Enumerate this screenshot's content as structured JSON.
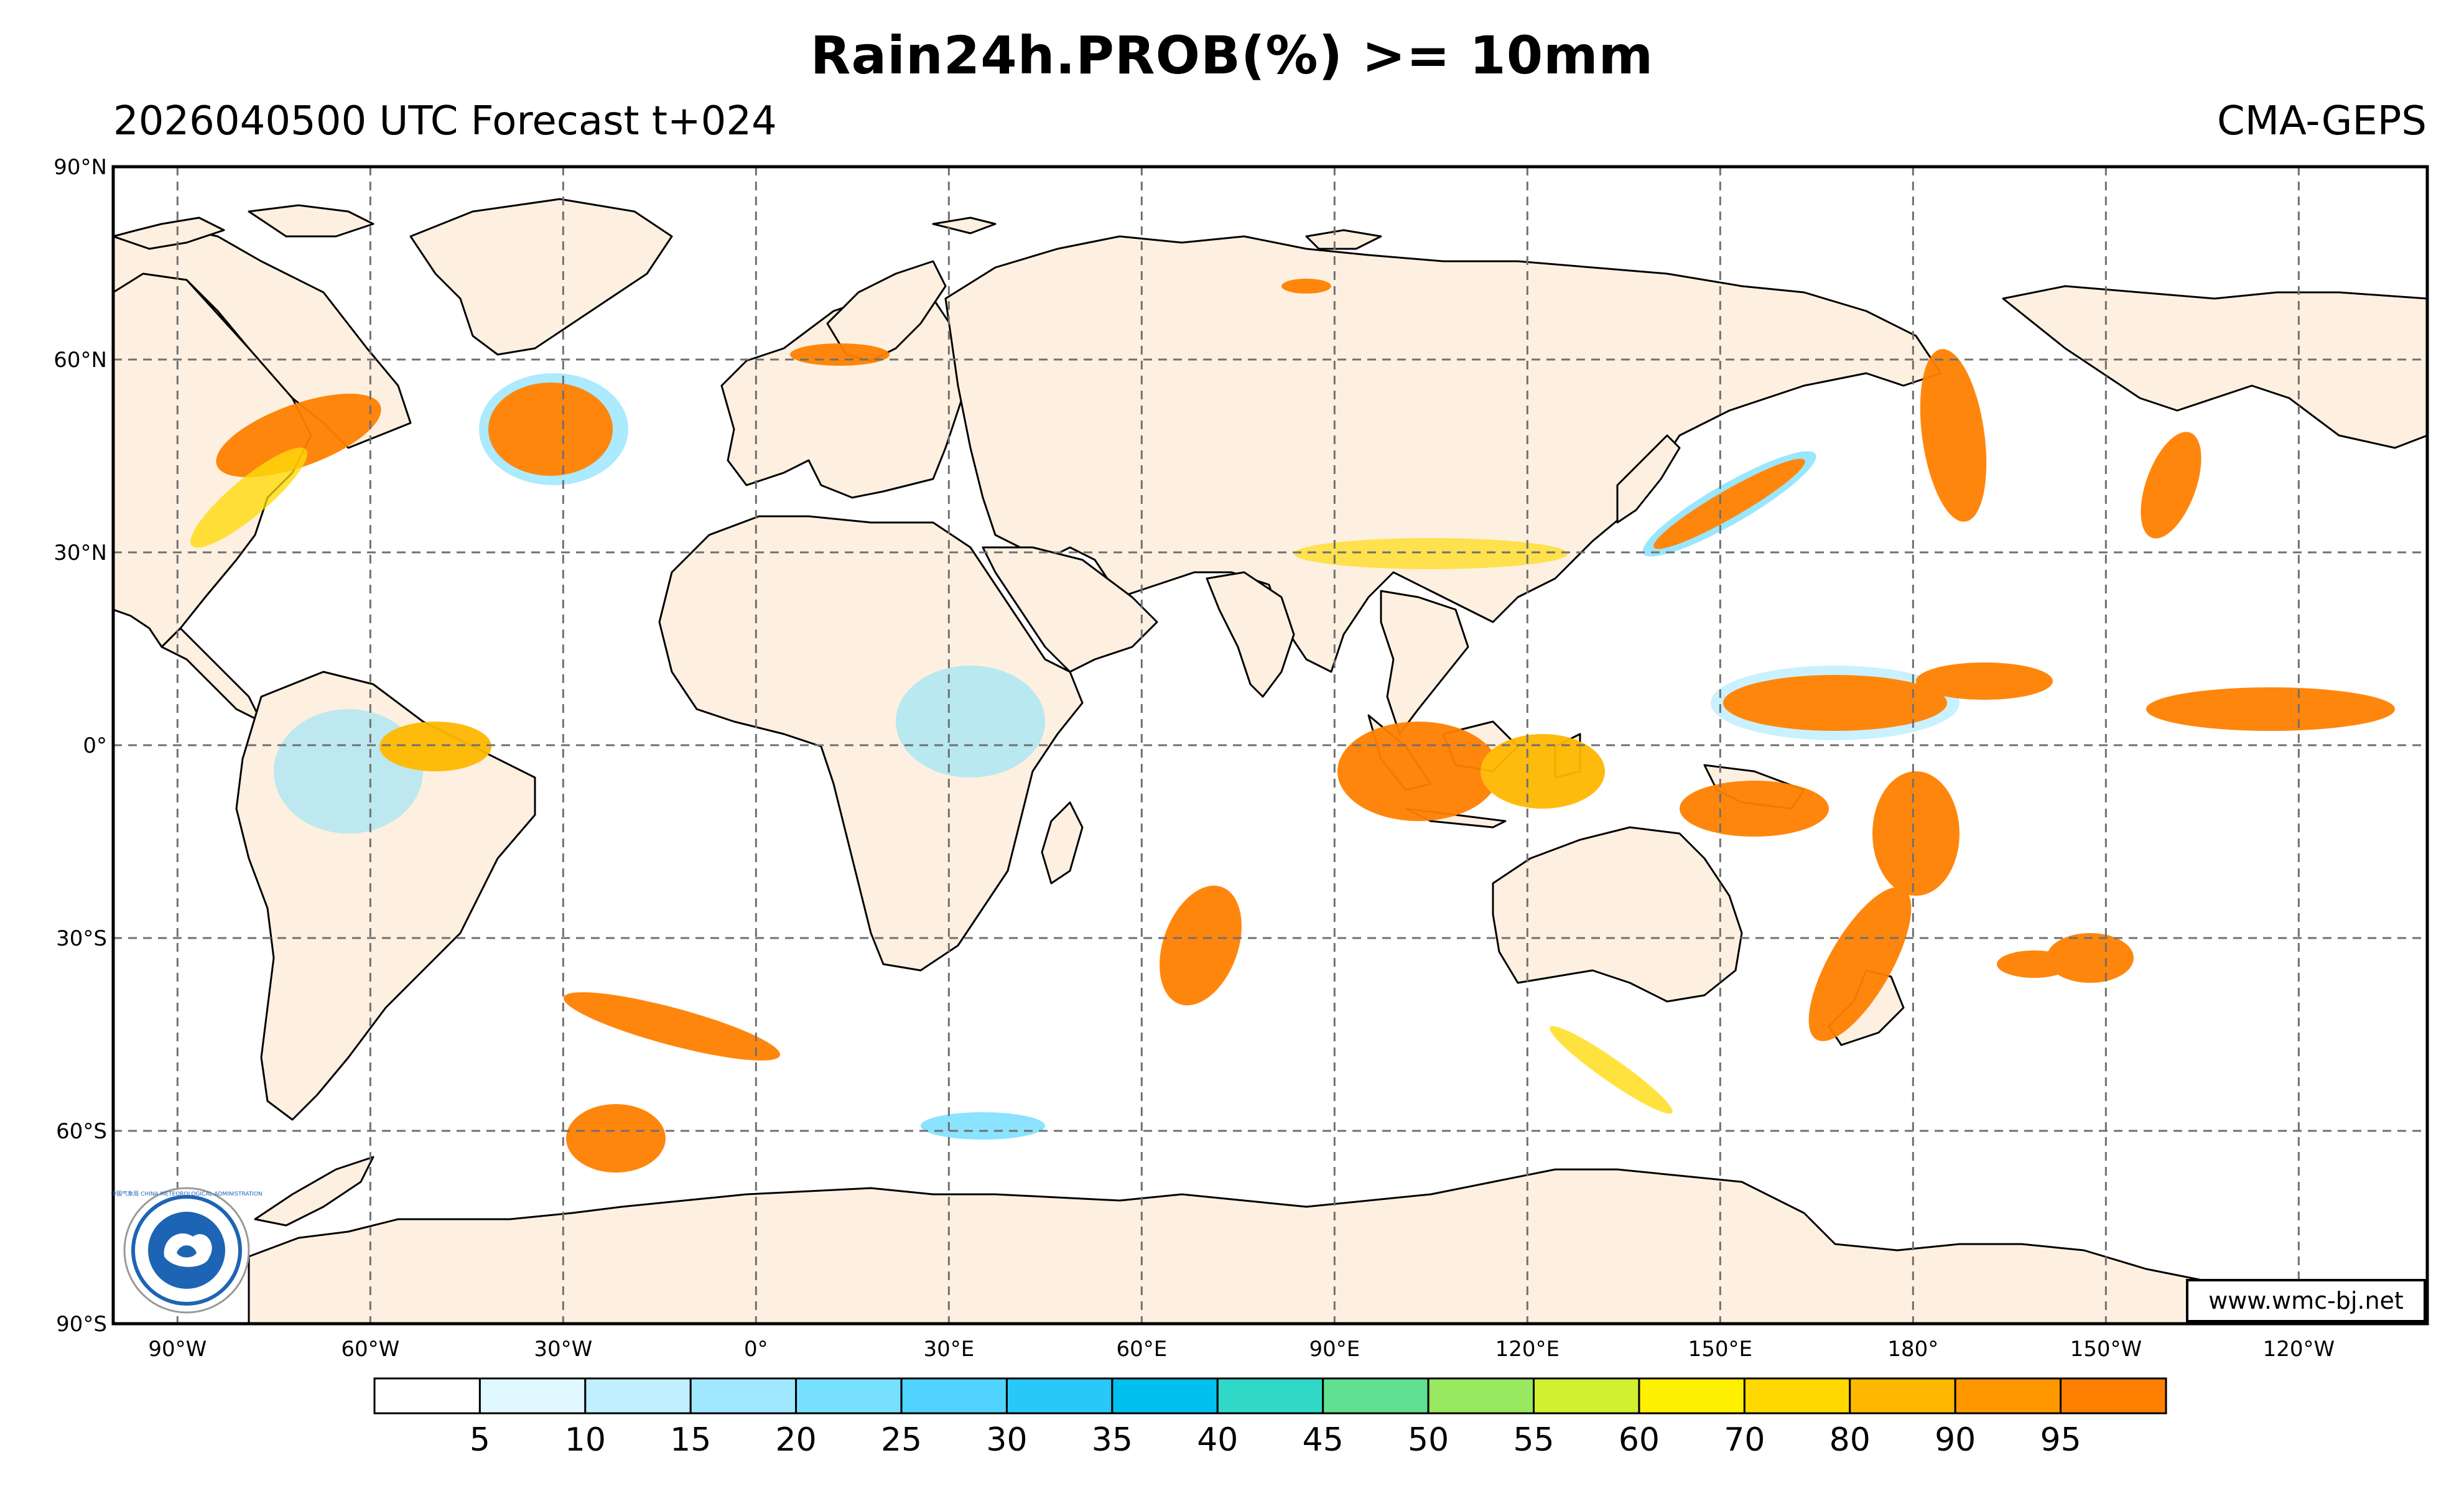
{
  "header": {
    "title": "Rain24h.PROB(%) >= 10mm",
    "subtitle_left": "2026040500 UTC Forecast t+024",
    "subtitle_right": "CMA-GEPS"
  },
  "map": {
    "lat_labels": [
      "90°N",
      "60°N",
      "30°N",
      "0°",
      "30°S",
      "60°S",
      "90°S"
    ],
    "lon_labels": [
      "90°W",
      "60°W",
      "30°W",
      "0°",
      "30°E",
      "60°E",
      "90°E",
      "120°E",
      "150°E",
      "180°",
      "150°W",
      "120°W"
    ],
    "credit": "www.wmc-bj.net",
    "logo_text": "中国气象局 CHINA METEOROLOGICAL ADMINISTRATION",
    "land_color": "#fdf0e0",
    "ocean_color": "#ffffff"
  },
  "colorbar": {
    "labels": [
      "5",
      "10",
      "15",
      "20",
      "25",
      "30",
      "35",
      "40",
      "45",
      "50",
      "55",
      "60",
      "70",
      "80",
      "90",
      "95"
    ],
    "colors": [
      "#ffffff",
      "#e0f8ff",
      "#c0f0ff",
      "#a0e8ff",
      "#78e0ff",
      "#50d4ff",
      "#28c8f8",
      "#00c0f0",
      "#30d8c8",
      "#60e090",
      "#98e860",
      "#d0f030",
      "#fff000",
      "#ffd800",
      "#ffb800",
      "#ff9800",
      "#ff8000"
    ]
  }
}
